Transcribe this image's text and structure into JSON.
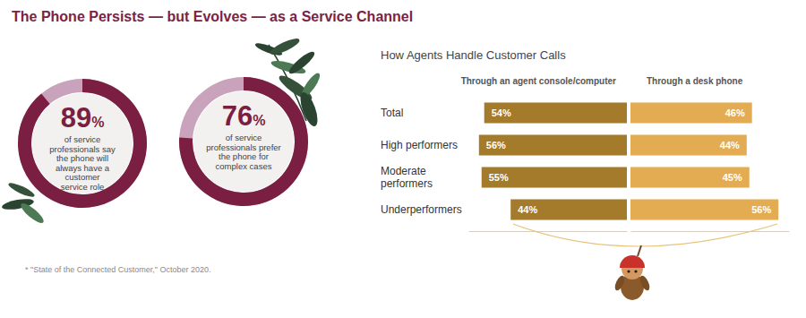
{
  "title": "The Phone Persists — but Evolves — as a Service Channel",
  "footnote": "* \"State of the Connected Customer,\" October 2020.",
  "chart_data": [
    {
      "type": "gauge",
      "values": [
        89
      ],
      "value_labels": [
        "89%"
      ],
      "data_labels": true,
      "ylim": [
        0,
        100
      ],
      "color": "#7b1f42",
      "label": [
        "of service",
        "professionals say",
        "the phone will",
        "always have a",
        "customer",
        "service role"
      ]
    },
    {
      "type": "gauge",
      "values": [
        76
      ],
      "value_labels": [
        "76%"
      ],
      "data_labels": true,
      "ylim": [
        0,
        100
      ],
      "color": "#7b1f42",
      "label": [
        "of service",
        "professionals prefer",
        "the phone for",
        "complex cases"
      ]
    },
    {
      "type": "bar",
      "orientation": "horizontal",
      "title": "How Agents Handle Customer Calls",
      "categories": [
        "Total",
        "High performers",
        "Moderate performers",
        "Underperformers"
      ],
      "series": [
        {
          "name": "Through an agent console/computer",
          "color": "#a47a2b",
          "values": [
            54,
            56,
            55,
            44
          ],
          "value_labels": [
            "54%",
            "56%",
            "55%",
            "44%"
          ]
        },
        {
          "name": "Through a desk phone",
          "color": "#e4ac52",
          "values": [
            46,
            44,
            45,
            56
          ],
          "value_labels": [
            "46%",
            "44%",
            "45%",
            "56%"
          ]
        }
      ],
      "xlim": [
        0,
        60
      ],
      "tick_labels": false,
      "data_labels": true,
      "legend": "top"
    }
  ]
}
